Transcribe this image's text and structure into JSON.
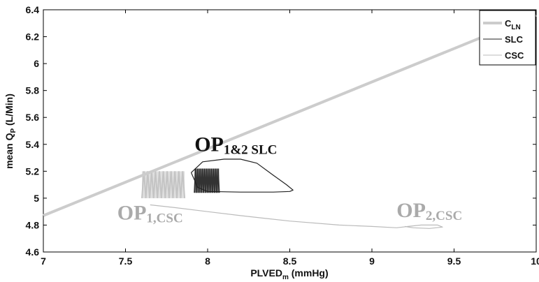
{
  "chart_data": {
    "type": "line",
    "xlabel_main": "PLVED",
    "xlabel_sub": "m",
    "xlabel_unit": " (mmHg)",
    "ylabel_main": "mean Q",
    "ylabel_sub": "P",
    "ylabel_unit": " (L/Min)",
    "xlim": [
      7,
      10
    ],
    "ylim": [
      4.6,
      6.4
    ],
    "xticks": [
      "7",
      "7.5",
      "8",
      "8.5",
      "9",
      "9.5",
      "10"
    ],
    "yticks": [
      "4.6",
      "4.8",
      "5",
      "5.2",
      "5.4",
      "5.6",
      "5.8",
      "6",
      "6.2",
      "6.4"
    ],
    "legend_position": "top-right",
    "legend": [
      {
        "main": "C",
        "sub": "LN",
        "color": "#cccccc",
        "width": 4
      },
      {
        "main": "SLC",
        "sub": "",
        "color": "#222222",
        "width": 1
      },
      {
        "main": "CSC",
        "sub": "",
        "color": "#bbbbbb",
        "width": 1
      }
    ],
    "series": [
      {
        "name": "C_LN",
        "color": "#cccccc",
        "x": [
          7.0,
          10.0
        ],
        "y": [
          4.87,
          6.36
        ]
      },
      {
        "name": "SLC",
        "color": "#222222",
        "x": [
          7.9,
          7.97,
          8.1,
          8.2,
          8.3,
          8.4,
          8.48,
          8.52,
          8.5,
          8.4,
          8.2,
          8.0,
          7.94,
          7.9
        ],
        "y": [
          5.19,
          5.27,
          5.29,
          5.29,
          5.26,
          5.17,
          5.1,
          5.06,
          5.05,
          5.045,
          5.045,
          5.05,
          5.08,
          5.19
        ]
      },
      {
        "name": "CSC",
        "color": "#bbbbbb",
        "x": [
          7.65,
          7.8,
          8.0,
          8.2,
          8.5,
          8.8,
          9.0,
          9.15,
          9.22,
          9.3,
          9.4,
          9.43,
          9.35,
          9.25,
          9.2
        ],
        "y": [
          4.95,
          4.93,
          4.9,
          4.87,
          4.83,
          4.8,
          4.79,
          4.78,
          4.79,
          4.8,
          4.8,
          4.785,
          4.775,
          4.78,
          4.79
        ]
      }
    ],
    "oscillation_bands": [
      {
        "name": "CSC",
        "color": "#c4c4c4",
        "x0": 7.6,
        "x1": 7.86,
        "y0": 5.0,
        "y1": 5.2
      },
      {
        "name": "SLC",
        "color": "#333333",
        "x0": 7.92,
        "x1": 8.07,
        "y0": 5.04,
        "y1": 5.22
      }
    ],
    "annotations": [
      {
        "main": "OP",
        "sub": "1&2 SLC",
        "x": 7.92,
        "y": 5.35,
        "color": "#111111",
        "size": 30
      },
      {
        "main": "OP",
        "sub": "1,CSC",
        "x": 7.45,
        "y": 4.84,
        "color": "#aaaaaa",
        "size": 30
      },
      {
        "main": "OP",
        "sub": "2,CSC",
        "x": 9.15,
        "y": 4.86,
        "color": "#aaaaaa",
        "size": 30
      }
    ]
  }
}
